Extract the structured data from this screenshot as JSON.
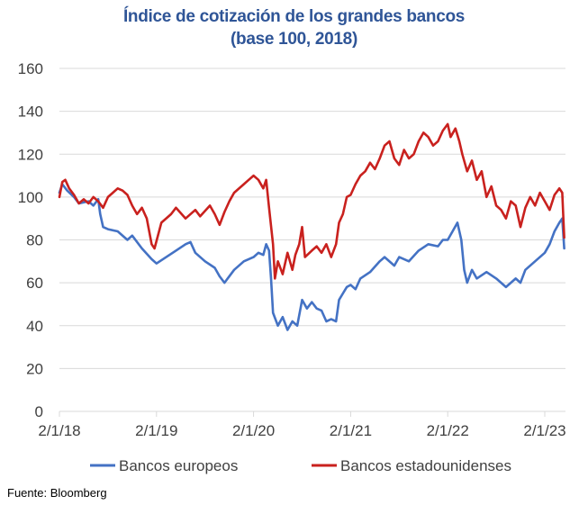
{
  "chart_data": {
    "type": "line",
    "title": "Índice de cotización de los grandes bancos",
    "subtitle": "(base 100, 2018)",
    "xlabel": "",
    "ylabel": "",
    "ylim": [
      0,
      160
    ],
    "yticks": [
      0,
      20,
      40,
      60,
      80,
      100,
      120,
      140,
      160
    ],
    "xlim": [
      2018.0,
      2023.22
    ],
    "xticks": [
      {
        "value": 2018.0,
        "label": "2/1/18"
      },
      {
        "value": 2019.0,
        "label": "2/1/19"
      },
      {
        "value": 2020.0,
        "label": "2/1/20"
      },
      {
        "value": 2021.0,
        "label": "2/1/21"
      },
      {
        "value": 2022.0,
        "label": "2/1/22"
      },
      {
        "value": 2023.0,
        "label": "2/1/23"
      }
    ],
    "grid": "horizontal",
    "legend_position": "bottom",
    "series": [
      {
        "name": "Bancos europeos",
        "color": "#4472c4",
        "x": [
          2018.0,
          2018.03,
          2018.08,
          2018.15,
          2018.2,
          2018.3,
          2018.35,
          2018.4,
          2018.42,
          2018.45,
          2018.5,
          2018.6,
          2018.7,
          2018.75,
          2018.85,
          2018.95,
          2019.0,
          2019.1,
          2019.2,
          2019.3,
          2019.35,
          2019.4,
          2019.5,
          2019.6,
          2019.65,
          2019.7,
          2019.8,
          2019.9,
          2019.95,
          2020.0,
          2020.05,
          2020.1,
          2020.13,
          2020.16,
          2020.18,
          2020.2,
          2020.25,
          2020.3,
          2020.35,
          2020.4,
          2020.45,
          2020.5,
          2020.55,
          2020.6,
          2020.65,
          2020.7,
          2020.75,
          2020.8,
          2020.85,
          2020.88,
          2020.92,
          2020.96,
          2021.0,
          2021.05,
          2021.1,
          2021.2,
          2021.3,
          2021.35,
          2021.45,
          2021.5,
          2021.6,
          2021.7,
          2021.8,
          2021.9,
          2021.95,
          2022.0,
          2022.05,
          2022.1,
          2022.14,
          2022.17,
          2022.2,
          2022.25,
          2022.3,
          2022.4,
          2022.5,
          2022.6,
          2022.7,
          2022.75,
          2022.8,
          2022.9,
          2023.0,
          2023.05,
          2023.1,
          2023.15,
          2023.18,
          2023.2
        ],
        "values": [
          102,
          106,
          103,
          100,
          97,
          98,
          96,
          99,
          92,
          86,
          85,
          84,
          80,
          82,
          76,
          71,
          69,
          72,
          75,
          78,
          79,
          74,
          70,
          67,
          63,
          60,
          66,
          70,
          71,
          72,
          74,
          73,
          78,
          75,
          62,
          46,
          40,
          44,
          38,
          42,
          40,
          52,
          48,
          51,
          48,
          47,
          42,
          43,
          42,
          52,
          55,
          58,
          59,
          57,
          62,
          65,
          70,
          72,
          68,
          72,
          70,
          75,
          78,
          77,
          80,
          80,
          84,
          88,
          80,
          66,
          60,
          66,
          62,
          65,
          62,
          58,
          62,
          60,
          66,
          70,
          74,
          78,
          84,
          88,
          90,
          76
        ]
      },
      {
        "name": "Bancos estadounidenses",
        "color": "#c9211e",
        "x": [
          2018.0,
          2018.03,
          2018.06,
          2018.1,
          2018.15,
          2018.2,
          2018.25,
          2018.3,
          2018.35,
          2018.4,
          2018.45,
          2018.5,
          2018.55,
          2018.6,
          2018.65,
          2018.7,
          2018.75,
          2018.8,
          2018.85,
          2018.9,
          2018.95,
          2018.98,
          2019.05,
          2019.15,
          2019.2,
          2019.3,
          2019.4,
          2019.45,
          2019.55,
          2019.6,
          2019.65,
          2019.7,
          2019.75,
          2019.8,
          2019.9,
          2019.95,
          2020.0,
          2020.05,
          2020.1,
          2020.13,
          2020.16,
          2020.2,
          2020.22,
          2020.25,
          2020.3,
          2020.35,
          2020.4,
          2020.43,
          2020.47,
          2020.5,
          2020.53,
          2020.6,
          2020.65,
          2020.7,
          2020.75,
          2020.8,
          2020.85,
          2020.88,
          2020.92,
          2020.96,
          2021.0,
          2021.05,
          2021.1,
          2021.15,
          2021.2,
          2021.25,
          2021.3,
          2021.35,
          2021.4,
          2021.45,
          2021.5,
          2021.55,
          2021.6,
          2021.65,
          2021.7,
          2021.75,
          2021.8,
          2021.85,
          2021.9,
          2021.95,
          2022.0,
          2022.03,
          2022.08,
          2022.12,
          2022.15,
          2022.2,
          2022.25,
          2022.3,
          2022.35,
          2022.4,
          2022.45,
          2022.5,
          2022.55,
          2022.6,
          2022.65,
          2022.7,
          2022.75,
          2022.8,
          2022.85,
          2022.9,
          2022.95,
          2023.0,
          2023.05,
          2023.1,
          2023.15,
          2023.18,
          2023.2
        ],
        "values": [
          100,
          107,
          108,
          104,
          101,
          97,
          99,
          97,
          100,
          98,
          95,
          100,
          102,
          104,
          103,
          101,
          96,
          92,
          95,
          90,
          78,
          76,
          88,
          92,
          95,
          90,
          94,
          91,
          96,
          92,
          87,
          93,
          98,
          102,
          106,
          108,
          110,
          108,
          104,
          108,
          95,
          78,
          62,
          70,
          64,
          74,
          66,
          73,
          78,
          86,
          72,
          75,
          77,
          74,
          78,
          72,
          78,
          88,
          92,
          100,
          101,
          106,
          110,
          112,
          116,
          113,
          118,
          124,
          126,
          118,
          115,
          122,
          118,
          120,
          126,
          130,
          128,
          124,
          126,
          131,
          134,
          128,
          132,
          126,
          120,
          112,
          117,
          108,
          112,
          100,
          105,
          96,
          94,
          90,
          98,
          96,
          86,
          95,
          100,
          96,
          102,
          98,
          94,
          101,
          104,
          102,
          81
        ]
      }
    ]
  },
  "source": "Fuente: Bloomberg"
}
